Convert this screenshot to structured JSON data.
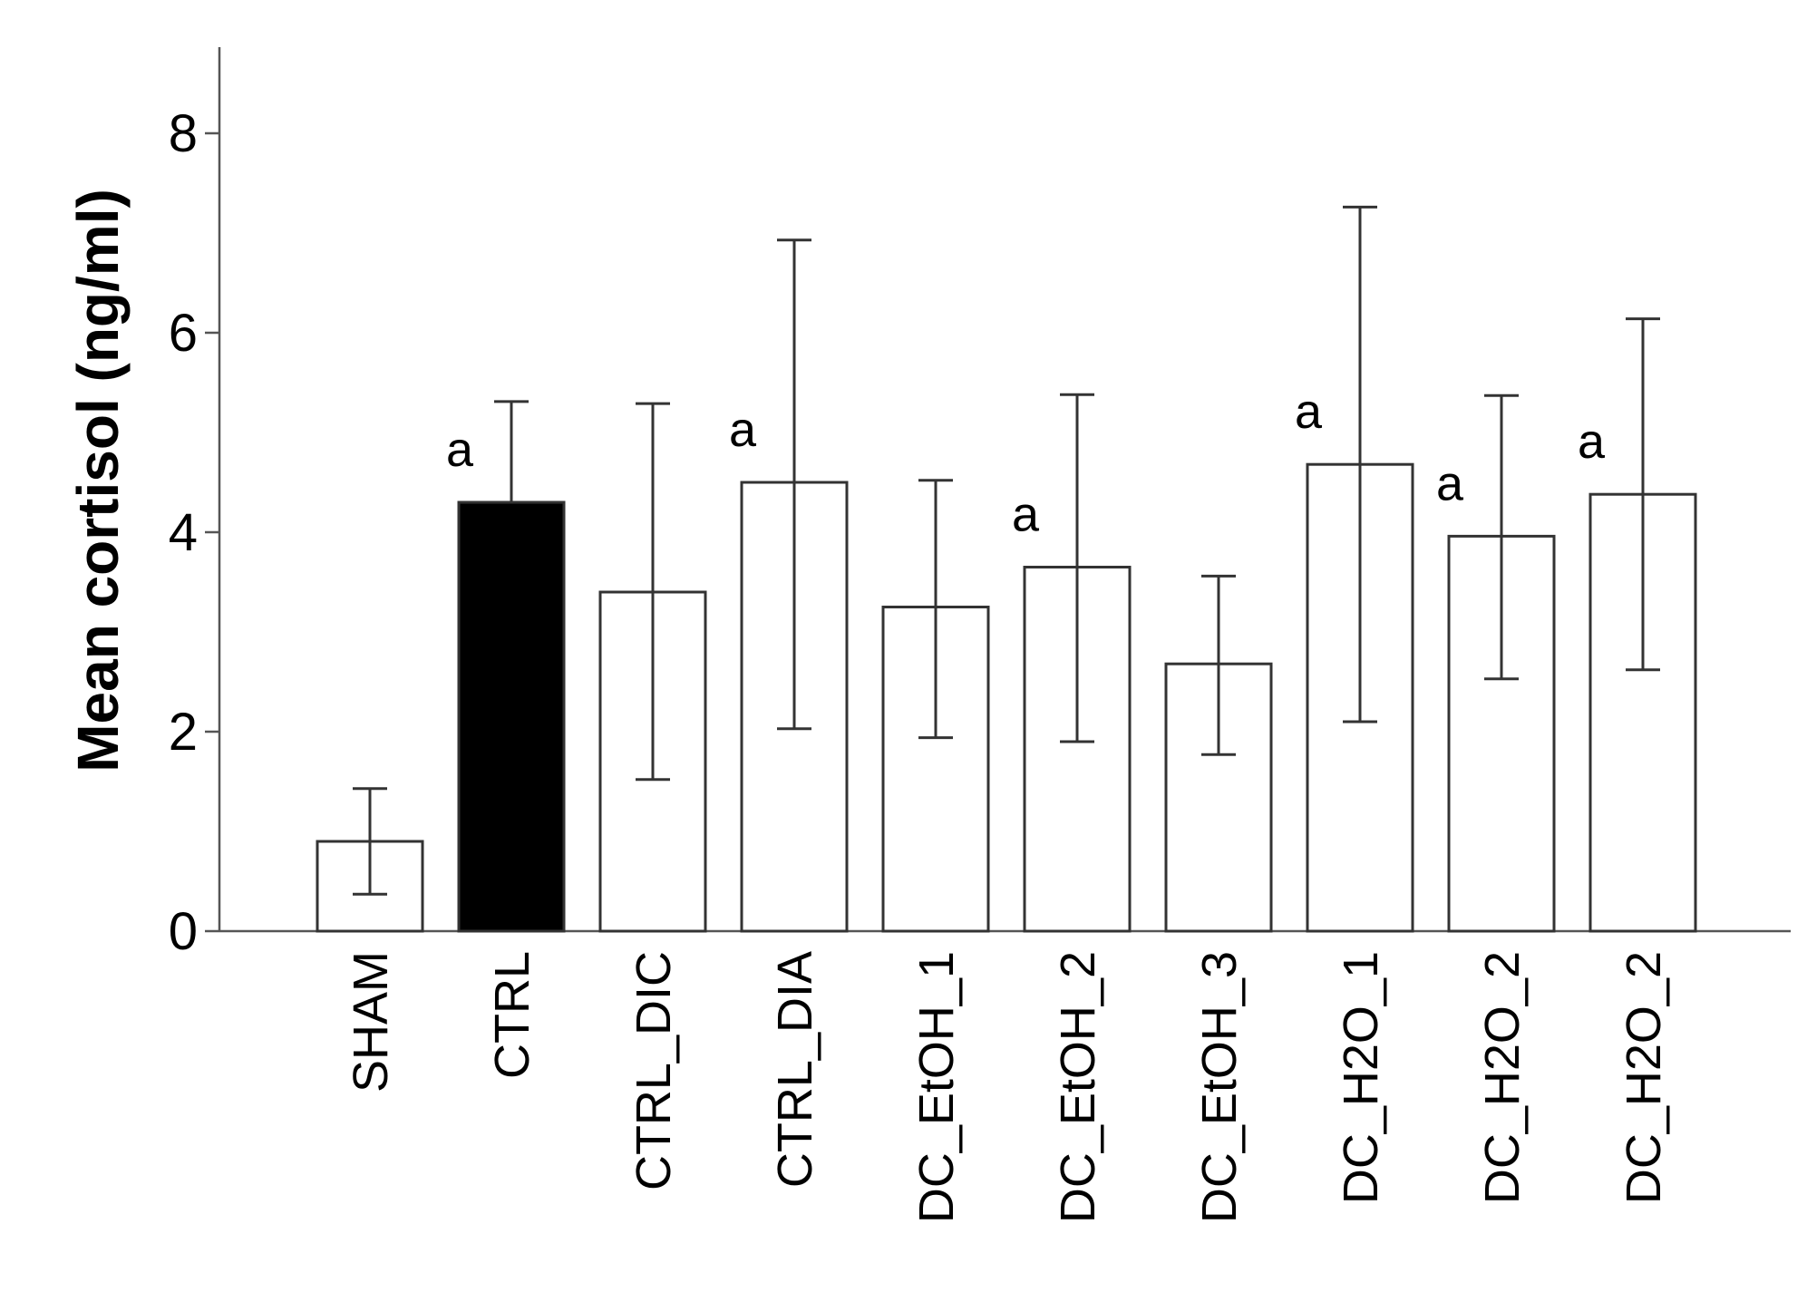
{
  "chart_data": {
    "type": "bar",
    "title": "",
    "xlabel": "",
    "ylabel": "Mean cortisol (ng/ml)",
    "ylim": [
      0,
      8.8
    ],
    "yticks": [
      0,
      2,
      4,
      6,
      8
    ],
    "grid": false,
    "legend": "none",
    "categories": [
      "SHAM",
      "CTRL",
      "CTRL_DIC",
      "CTRL_DIA",
      "DC_EtOH_1",
      "DC_EtOH_2",
      "DC_EtOH_3",
      "DC_H2O_1",
      "DC_H2O_2",
      "DC_H2O_2"
    ],
    "values": [
      0.9,
      4.3,
      3.4,
      4.5,
      3.25,
      3.65,
      2.68,
      4.68,
      3.96,
      4.38
    ],
    "error_low": [
      0.37,
      4.3,
      1.52,
      2.03,
      1.94,
      1.9,
      1.77,
      2.1,
      2.53,
      2.62
    ],
    "error_high": [
      1.43,
      5.31,
      5.29,
      6.93,
      4.52,
      5.38,
      3.56,
      7.26,
      5.37,
      6.14
    ],
    "significance": [
      "",
      "a",
      "",
      "a",
      "",
      "a",
      "",
      "a",
      "a",
      "a"
    ],
    "colors": {
      "fill_default": "#ffffff",
      "fill_highlight": "#000000",
      "stroke": "#333333",
      "error_bar": "#333333",
      "axis": "#555555"
    },
    "highlight_index": 1
  }
}
